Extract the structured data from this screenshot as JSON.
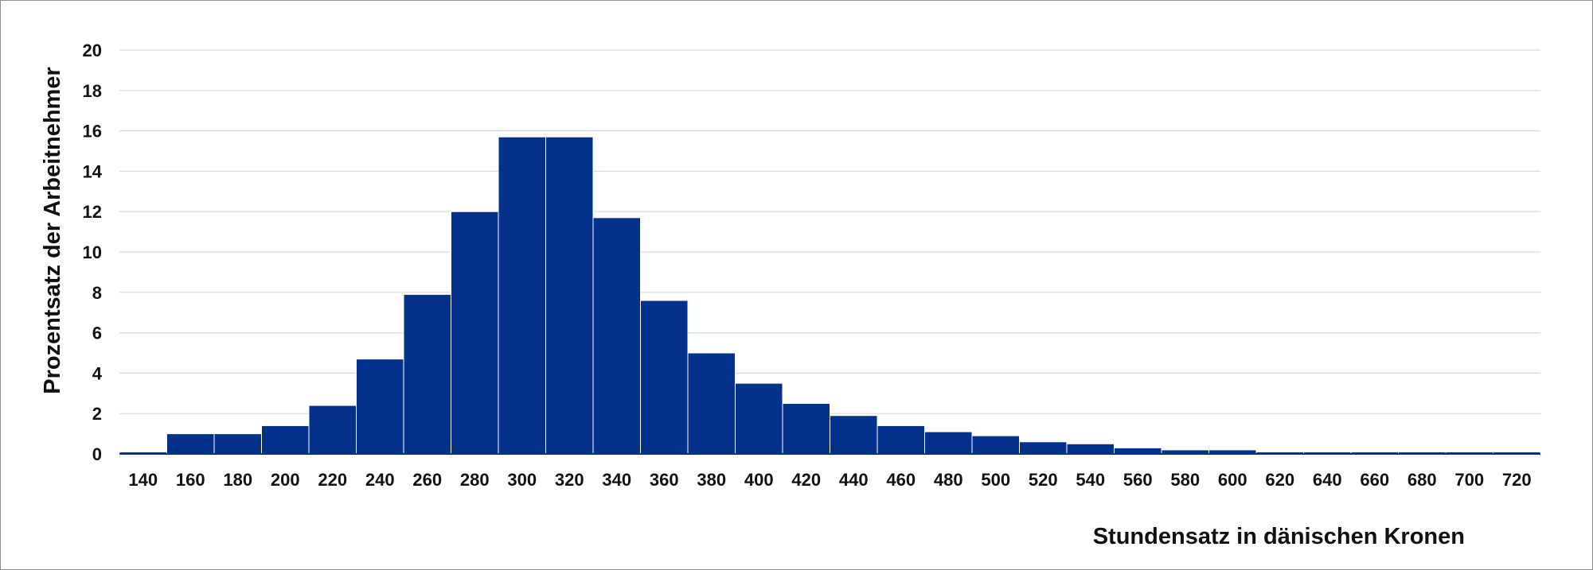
{
  "chart_data": {
    "type": "bar",
    "xlabel": "Stundensatz in dänischen Kronen",
    "ylabel": "Prozentsatz der Arbeitnehmer",
    "ylim": [
      0,
      20
    ],
    "yticks": [
      0,
      2,
      4,
      6,
      8,
      10,
      12,
      14,
      16,
      18,
      20
    ],
    "grid": true,
    "bar_color": "#03318c",
    "grid_color": "#d9d9d9",
    "categories": [
      "140",
      "160",
      "180",
      "200",
      "220",
      "240",
      "260",
      "280",
      "300",
      "320",
      "340",
      "360",
      "380",
      "400",
      "420",
      "440",
      "460",
      "480",
      "500",
      "520",
      "540",
      "560",
      "580",
      "600",
      "620",
      "640",
      "660",
      "680",
      "700",
      "720"
    ],
    "values": [
      0.1,
      1.0,
      1.0,
      1.4,
      2.4,
      4.7,
      7.9,
      12.0,
      15.7,
      15.7,
      11.7,
      7.6,
      5.0,
      3.5,
      2.5,
      1.9,
      1.4,
      1.1,
      0.9,
      0.6,
      0.5,
      0.3,
      0.2,
      0.2,
      0.1,
      0.1,
      0.1,
      0.1,
      0.1,
      0.1
    ]
  }
}
